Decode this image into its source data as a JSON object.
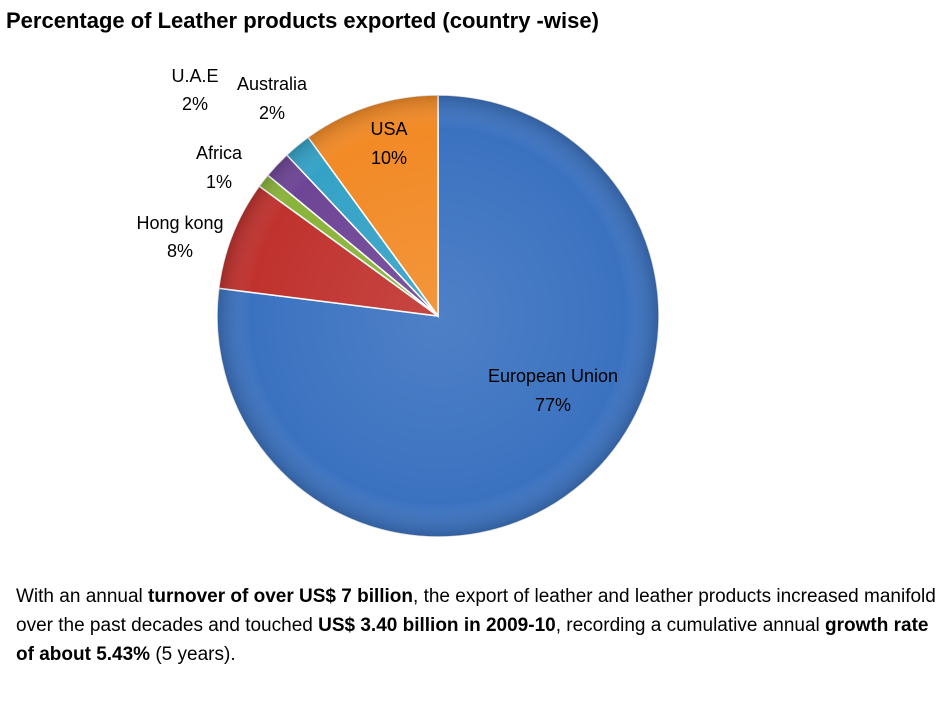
{
  "title": "Percentage of Leather products exported (country -wise)",
  "chart_data": {
    "type": "pie",
    "title": "Percentage of Leather products exported (country -wise)",
    "slices": [
      {
        "label": "European Union",
        "value": 77,
        "display": "77%",
        "color": "#3b72c0"
      },
      {
        "label": "Hong kong",
        "value": 8,
        "display": "8%",
        "color": "#c0322e"
      },
      {
        "label": "Africa",
        "value": 1,
        "display": "1%",
        "color": "#8ab33a"
      },
      {
        "label": "U.A.E",
        "value": 2,
        "display": "2%",
        "color": "#6e4596"
      },
      {
        "label": "Australia",
        "value": 2,
        "display": "2%",
        "color": "#34a2c6"
      },
      {
        "label": "USA",
        "value": 10,
        "display": "10%",
        "color": "#f28a26"
      }
    ]
  },
  "caption": {
    "p1": "With an annual ",
    "b1": "turnover of over US$ 7 billion",
    "p2": ", the export of leather and leather products increased manifold over the past decades and touched ",
    "b2": "US$ 3.40 billion in 2009-10",
    "p3": ", recording a cumulative annual ",
    "b3": "growth rate of about 5.43%",
    "p4": " (5 years)."
  }
}
